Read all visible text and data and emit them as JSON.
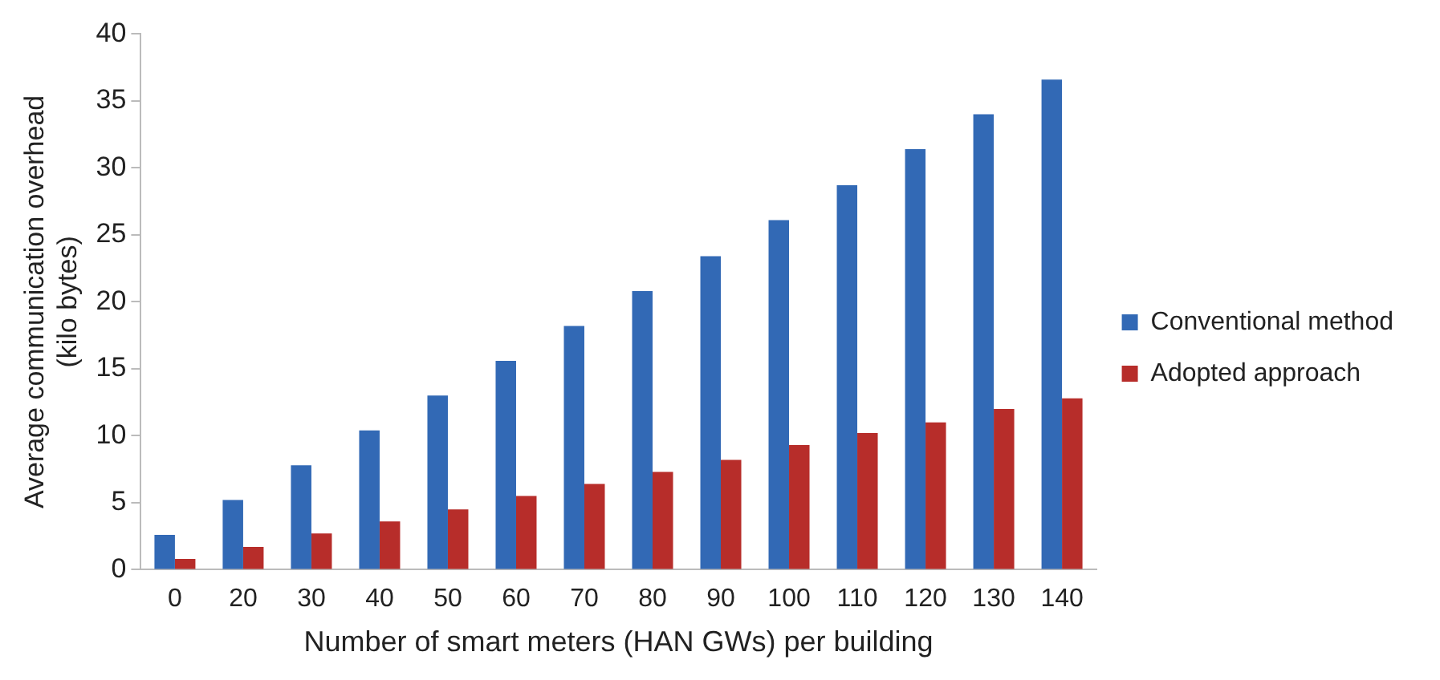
{
  "chart_data": {
    "type": "bar",
    "xlabel": "Number of smart meters (HAN GWs) per building",
    "ylabel": "Average communication overhead (kilo bytes)",
    "categories": [
      "0",
      "20",
      "30",
      "40",
      "50",
      "60",
      "70",
      "80",
      "90",
      "100",
      "110",
      "120",
      "130",
      "140"
    ],
    "series": [
      {
        "name": "Conventional method",
        "color": "#3269b5",
        "values": [
          2.6,
          5.2,
          7.8,
          10.4,
          13.0,
          15.6,
          18.2,
          20.8,
          23.4,
          26.1,
          28.7,
          31.4,
          34.0,
          36.6
        ]
      },
      {
        "name": "Adopted approach",
        "color": "#b72d2a",
        "values": [
          0.8,
          1.7,
          2.7,
          3.6,
          4.5,
          5.5,
          6.4,
          7.3,
          8.2,
          9.3,
          10.2,
          11.0,
          12.0,
          12.8
        ]
      }
    ],
    "ylim": [
      0,
      40
    ],
    "yticks": [
      0,
      5,
      10,
      15,
      20,
      25,
      30,
      35,
      40
    ],
    "grid": false,
    "legend": "right"
  }
}
